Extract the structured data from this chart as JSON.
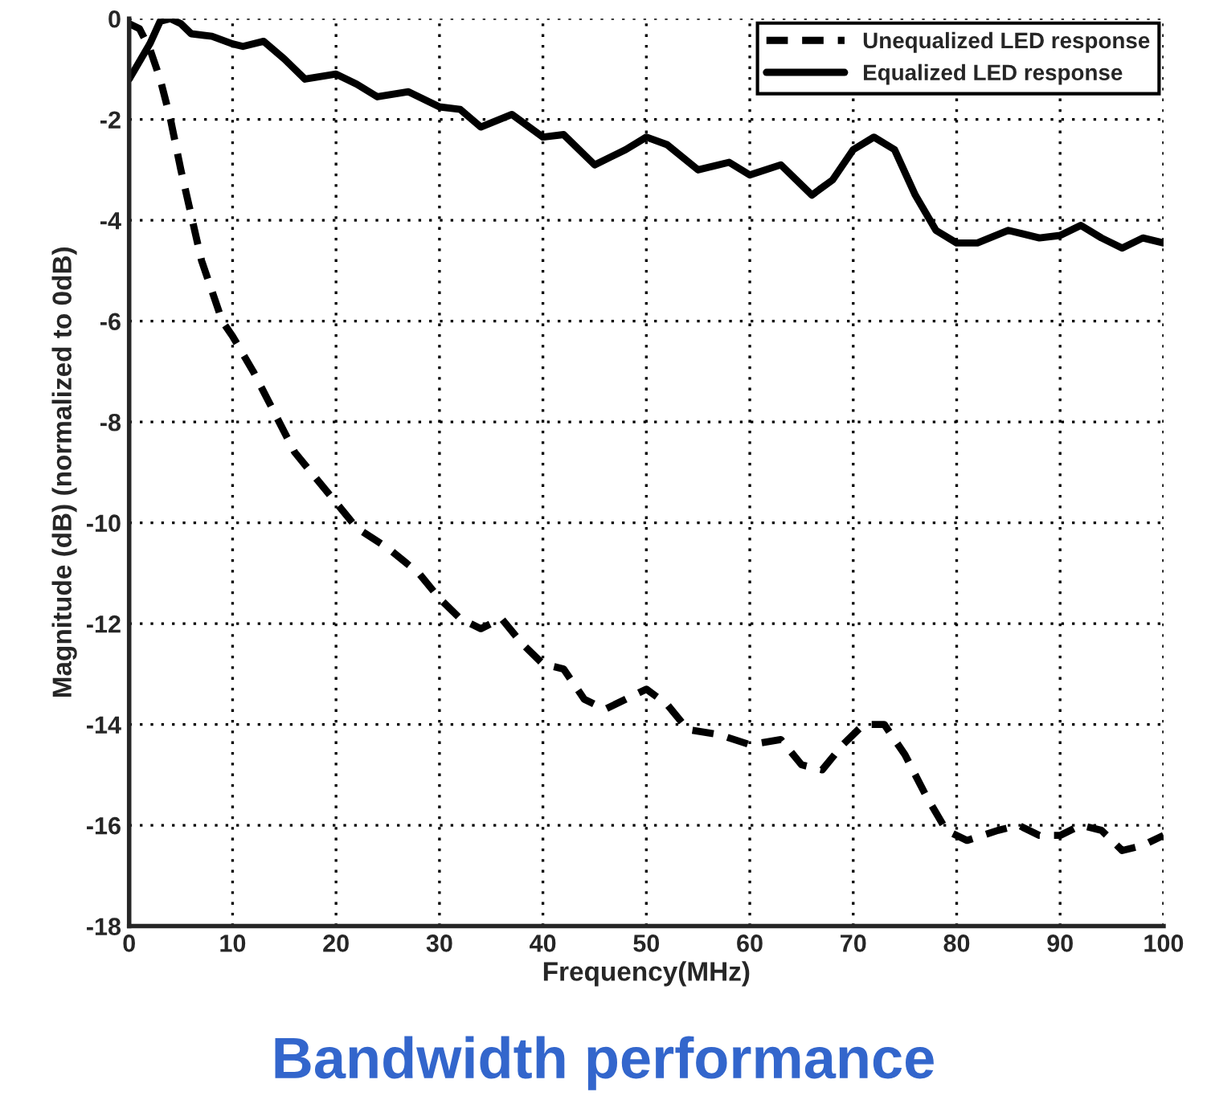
{
  "chart_data": {
    "type": "line",
    "title": "Bandwidth performance",
    "xlabel": "Frequency(MHz)",
    "ylabel": "Magnitude (dB) (normalized to 0dB)",
    "xlim": [
      0,
      100
    ],
    "xticks": [
      0,
      10,
      20,
      30,
      40,
      50,
      60,
      70,
      80,
      90,
      100
    ],
    "ylim": [
      -18,
      0
    ],
    "yticks": [
      -18,
      -16,
      -14,
      -12,
      -10,
      -8,
      -6,
      -4,
      -2,
      0
    ],
    "grid": true,
    "legend": "top right",
    "series": [
      {
        "name": "Unequalized LED response",
        "color": "#000000",
        "line_style": "dashed",
        "x": [
          0,
          1,
          2,
          3,
          4,
          5,
          6,
          7,
          8,
          9,
          10,
          12,
          14,
          16,
          18,
          20,
          22,
          25,
          28,
          30,
          32,
          34,
          36,
          38,
          40,
          42,
          44,
          46,
          48,
          50,
          52,
          54,
          57,
          60,
          63,
          65,
          67,
          69,
          71,
          73,
          75,
          77,
          79,
          81,
          84,
          86,
          88,
          90,
          92,
          94,
          96,
          98,
          100
        ],
        "values": [
          -0.1,
          -0.2,
          -0.6,
          -1.2,
          -2.0,
          -3.0,
          -3.9,
          -4.8,
          -5.4,
          -6.0,
          -6.3,
          -7.0,
          -7.8,
          -8.6,
          -9.1,
          -9.6,
          -10.1,
          -10.5,
          -11.0,
          -11.5,
          -11.9,
          -12.1,
          -11.9,
          -12.4,
          -12.8,
          -12.9,
          -13.5,
          -13.7,
          -13.5,
          -13.3,
          -13.6,
          -14.1,
          -14.2,
          -14.4,
          -14.3,
          -14.8,
          -14.9,
          -14.4,
          -14.0,
          -14.0,
          -14.6,
          -15.4,
          -16.1,
          -16.3,
          -16.1,
          -16.0,
          -16.2,
          -16.2,
          -16.0,
          -16.1,
          -16.5,
          -16.4,
          -16.2
        ]
      },
      {
        "name": "Equalized LED response",
        "color": "#000000",
        "line_style": "solid",
        "x": [
          0,
          2,
          3,
          4,
          5,
          6,
          8,
          10,
          11,
          13,
          15,
          17,
          20,
          22,
          24,
          27,
          30,
          32,
          34,
          37,
          40,
          42,
          45,
          48,
          50,
          52,
          55,
          58,
          60,
          63,
          66,
          68,
          70,
          72,
          74,
          76,
          78,
          80,
          82,
          85,
          88,
          90,
          92,
          94,
          96,
          98,
          100
        ],
        "values": [
          -1.2,
          -0.5,
          -0.05,
          0,
          -0.1,
          -0.3,
          -0.35,
          -0.5,
          -0.55,
          -0.45,
          -0.8,
          -1.2,
          -1.1,
          -1.3,
          -1.55,
          -1.45,
          -1.75,
          -1.8,
          -2.15,
          -1.9,
          -2.35,
          -2.3,
          -2.9,
          -2.6,
          -2.35,
          -2.5,
          -3.0,
          -2.85,
          -3.1,
          -2.9,
          -3.5,
          -3.2,
          -2.6,
          -2.35,
          -2.6,
          -3.5,
          -4.2,
          -4.45,
          -4.45,
          -4.2,
          -4.35,
          -4.3,
          -4.1,
          -4.35,
          -4.55,
          -4.35,
          -4.45
        ]
      }
    ]
  }
}
